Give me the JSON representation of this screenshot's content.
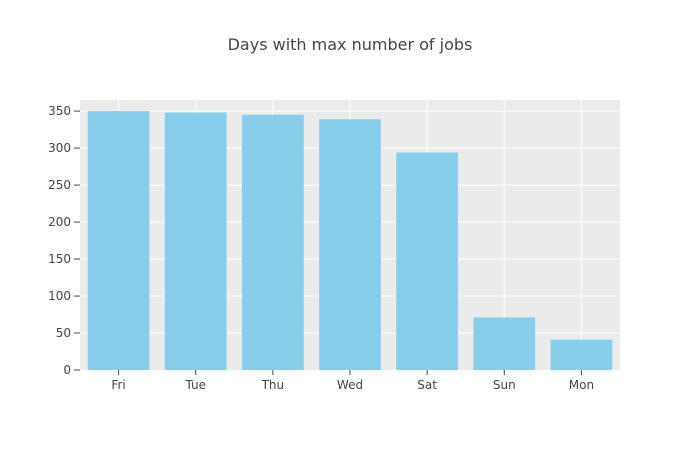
{
  "chart_data": {
    "type": "bar",
    "title": "Days with max number of jobs",
    "xlabel": "",
    "ylabel": "",
    "categories": [
      "Fri",
      "Tue",
      "Thu",
      "Wed",
      "Sat",
      "Sun",
      "Mon"
    ],
    "values": [
      350,
      348,
      345,
      339,
      294,
      71,
      41
    ],
    "ylim": [
      0,
      365
    ],
    "yticks": [
      0,
      50,
      100,
      150,
      200,
      250,
      300,
      350
    ],
    "grid": true,
    "legend": "none",
    "colors": {
      "bar": "#87ceeb",
      "plot_background": "#ebebeb",
      "grid": "#ffffff",
      "text": "#444444"
    }
  }
}
